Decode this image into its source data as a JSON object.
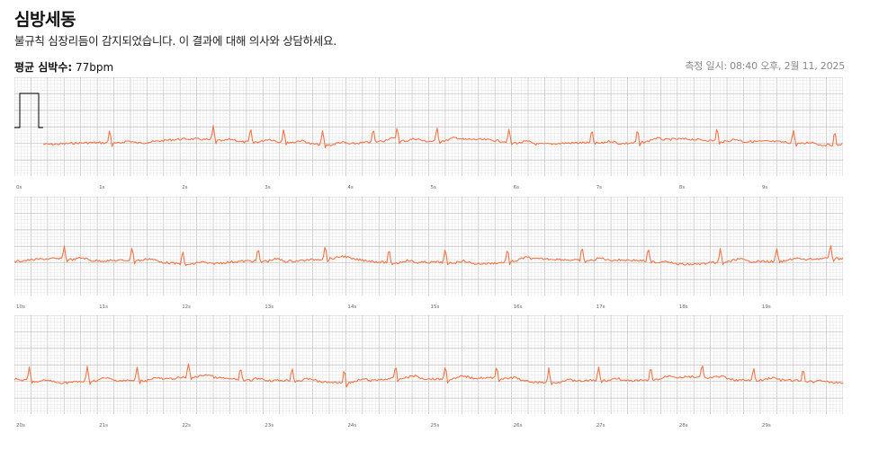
{
  "header": {
    "title": "심방세동",
    "subtitle": "불규칙 심장리듬이 감지되었습니다. 이 결과에 대해 의사와 상담하세요.",
    "avg_label": "평균 심박수:",
    "avg_value": "77bpm",
    "measured": "측정 일시: 08:40 오후, 2월 11, 2025"
  },
  "colors": {
    "trace": "#f2764a",
    "grid_minor": "#e4e4e4",
    "grid_major": "#bdbdbd",
    "calibration": "#000000"
  },
  "chart_data": {
    "type": "line",
    "title": "",
    "xlabel": "",
    "ylabel": "",
    "unit": "s",
    "grid": true,
    "strips": [
      {
        "x_range": [
          0,
          10
        ],
        "tick_labels": [
          "0s",
          "1s",
          "2s",
          "3s",
          "4s",
          "5s",
          "6s",
          "7s",
          "8s",
          "9s"
        ],
        "r_peaks": [
          1.15,
          2.4,
          2.85,
          3.25,
          3.72,
          4.33,
          4.62,
          5.1,
          5.97,
          6.97,
          7.52,
          8.48,
          9.4,
          9.9
        ],
        "calibration_pulse": true
      },
      {
        "x_range": [
          10,
          20
        ],
        "tick_labels": [
          "10s",
          "11s",
          "12s",
          "13s",
          "14s",
          "15s",
          "16s",
          "17s",
          "18s",
          "19s"
        ],
        "r_peaks": [
          10.6,
          11.42,
          12.03,
          12.94,
          13.75,
          14.52,
          15.2,
          15.95,
          16.85,
          17.65,
          18.52,
          19.2,
          19.85
        ],
        "calibration_pulse": false
      },
      {
        "x_range": [
          20,
          30
        ],
        "tick_labels": [
          "20s",
          "21s",
          "22s",
          "23s",
          "24s",
          "25s",
          "26s",
          "27s",
          "28s",
          "29s"
        ],
        "r_peaks": [
          20.18,
          20.88,
          21.48,
          22.1,
          22.73,
          23.35,
          23.98,
          24.6,
          25.2,
          25.82,
          26.45,
          27.05,
          27.68,
          28.3,
          28.92,
          29.52
        ],
        "calibration_pulse": false
      }
    ]
  }
}
